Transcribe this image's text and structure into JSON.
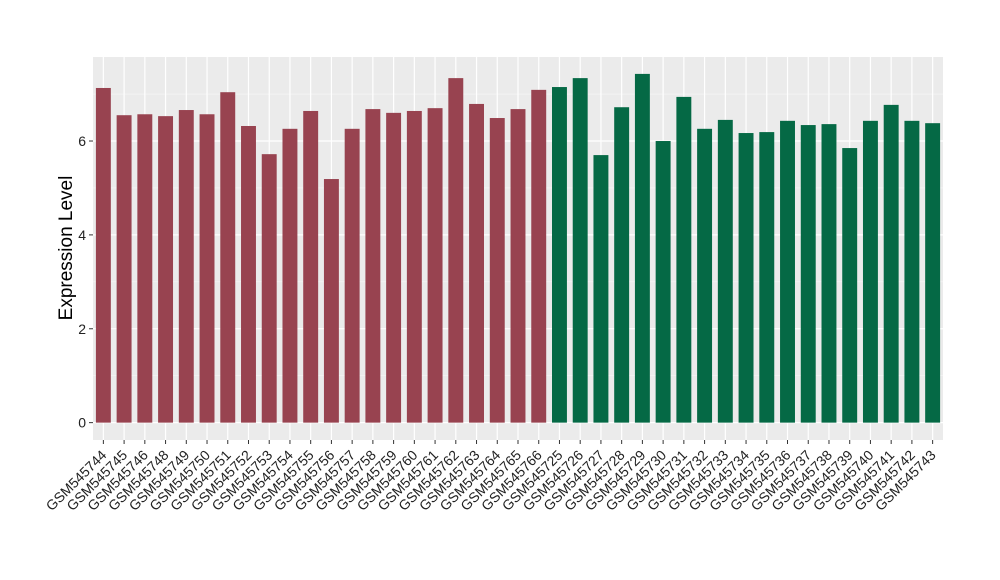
{
  "chart_data": {
    "type": "bar",
    "y_label": "Expression Level",
    "categories": [
      "GSM545744",
      "GSM545745",
      "GSM545746",
      "GSM545748",
      "GSM545749",
      "GSM545750",
      "GSM545751",
      "GSM545752",
      "GSM545753",
      "GSM545754",
      "GSM545755",
      "GSM545756",
      "GSM545757",
      "GSM545758",
      "GSM545759",
      "GSM545760",
      "GSM545761",
      "GSM545762",
      "GSM545763",
      "GSM545764",
      "GSM545765",
      "GSM545766",
      "GSM545725",
      "GSM545726",
      "GSM545727",
      "GSM545728",
      "GSM545729",
      "GSM545730",
      "GSM545731",
      "GSM545732",
      "GSM545733",
      "GSM545734",
      "GSM545735",
      "GSM545736",
      "GSM545737",
      "GSM545738",
      "GSM545739",
      "GSM545740",
      "GSM545741",
      "GSM545742",
      "GSM545743"
    ],
    "values": [
      7.13,
      6.55,
      6.57,
      6.53,
      6.66,
      6.57,
      7.04,
      6.32,
      5.72,
      6.26,
      6.64,
      5.19,
      6.26,
      6.68,
      6.6,
      6.64,
      6.7,
      7.34,
      6.79,
      6.49,
      6.68,
      7.09,
      7.15,
      7.34,
      5.7,
      6.72,
      7.43,
      6.0,
      6.94,
      6.26,
      6.45,
      6.17,
      6.19,
      6.43,
      6.34,
      6.36,
      5.85,
      6.43,
      6.77,
      6.43,
      6.38
    ],
    "colors": [
      "#984350",
      "#984350",
      "#984350",
      "#984350",
      "#984350",
      "#984350",
      "#984350",
      "#984350",
      "#984350",
      "#984350",
      "#984350",
      "#984350",
      "#984350",
      "#984350",
      "#984350",
      "#984350",
      "#984350",
      "#984350",
      "#984350",
      "#984350",
      "#984350",
      "#984350",
      "#056945",
      "#056945",
      "#056945",
      "#056945",
      "#056945",
      "#056945",
      "#056945",
      "#056945",
      "#056945",
      "#056945",
      "#056945",
      "#056945",
      "#056945",
      "#056945",
      "#056945",
      "#056945",
      "#056945",
      "#056945",
      "#056945"
    ],
    "ylim": [
      -0.37,
      7.79
    ],
    "yticks": [
      0,
      2,
      4,
      6
    ],
    "minor_yticks": [
      1,
      3,
      5,
      7
    ],
    "grid": true
  }
}
